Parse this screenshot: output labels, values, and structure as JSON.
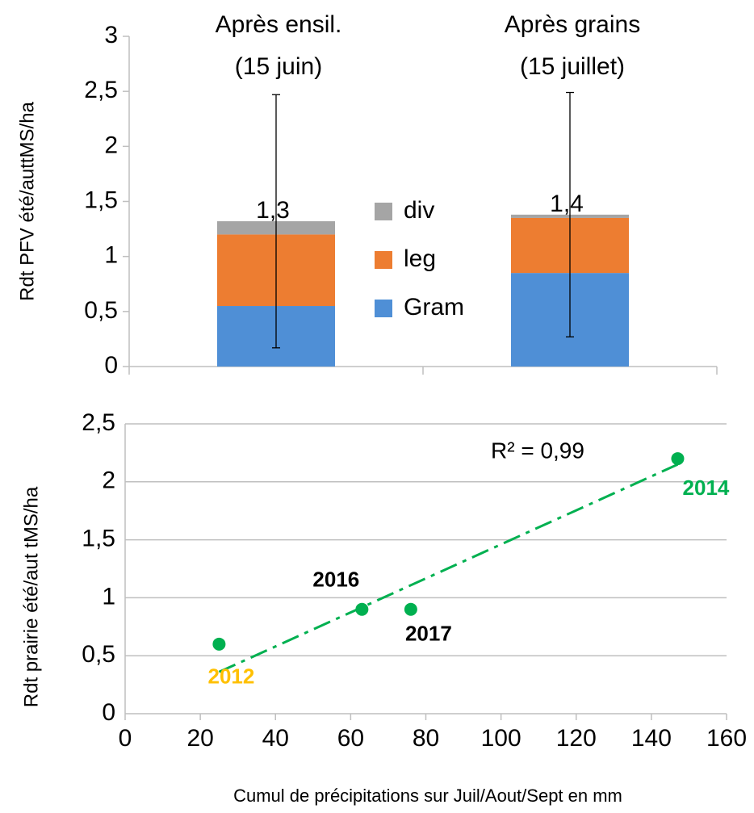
{
  "chart_data": [
    {
      "type": "bar",
      "ylabel": "Rdt PFV été/auttMS/ha",
      "categories": [
        [
          "Après ensil.",
          "(15 juin)"
        ],
        [
          "Après grains",
          "(15 juillet)"
        ]
      ],
      "series": [
        {
          "name": "Gram",
          "color": "#4f8fd6",
          "values": [
            0.55,
            0.85
          ]
        },
        {
          "name": "leg",
          "color": "#ed7d31",
          "values": [
            0.65,
            0.5
          ]
        },
        {
          "name": "div",
          "color": "#a5a5a5",
          "values": [
            0.12,
            0.03
          ]
        }
      ],
      "totals": [
        1.32,
        1.38
      ],
      "value_labels": [
        "1,3",
        "1,4"
      ],
      "errors": [
        1.15,
        1.11
      ],
      "ylim": [
        0,
        3
      ],
      "yticks": [
        0,
        {
          "value": 0.5,
          "label": "0,5"
        },
        1,
        {
          "value": 1.5,
          "label": "1,5"
        },
        2,
        {
          "value": 2.5,
          "label": "2,5"
        },
        3
      ],
      "grid": false
    },
    {
      "type": "scatter",
      "xlabel": "Cumul de précipitations sur Juil/Aout/Sept en mm",
      "ylabel": "Rdt prairie été/aut tMS/ha",
      "x": [
        25,
        63,
        76,
        147
      ],
      "y": [
        0.6,
        0.9,
        0.9,
        2.2
      ],
      "color": "#00b050",
      "point_labels": [
        "2012",
        "2016",
        "2017",
        "2014"
      ],
      "label_colors": [
        "#ffc000",
        "#000000",
        "#000000",
        "#00b050"
      ],
      "trendline": {
        "x": [
          25,
          147
        ],
        "y": [
          0.36,
          2.15
        ],
        "color": "#00b050",
        "annotation": "R² = 0,99"
      },
      "xlim": [
        0,
        160
      ],
      "xticks": [
        0,
        20,
        40,
        60,
        80,
        100,
        120,
        140,
        160
      ],
      "ylim": [
        0,
        2.5
      ],
      "yticks": [
        0,
        {
          "value": 0.5,
          "label": "0,5"
        },
        1,
        {
          "value": 1.5,
          "label": "1,5"
        },
        2,
        {
          "value": 2.5,
          "label": "2,5"
        }
      ],
      "grid": true
    }
  ]
}
